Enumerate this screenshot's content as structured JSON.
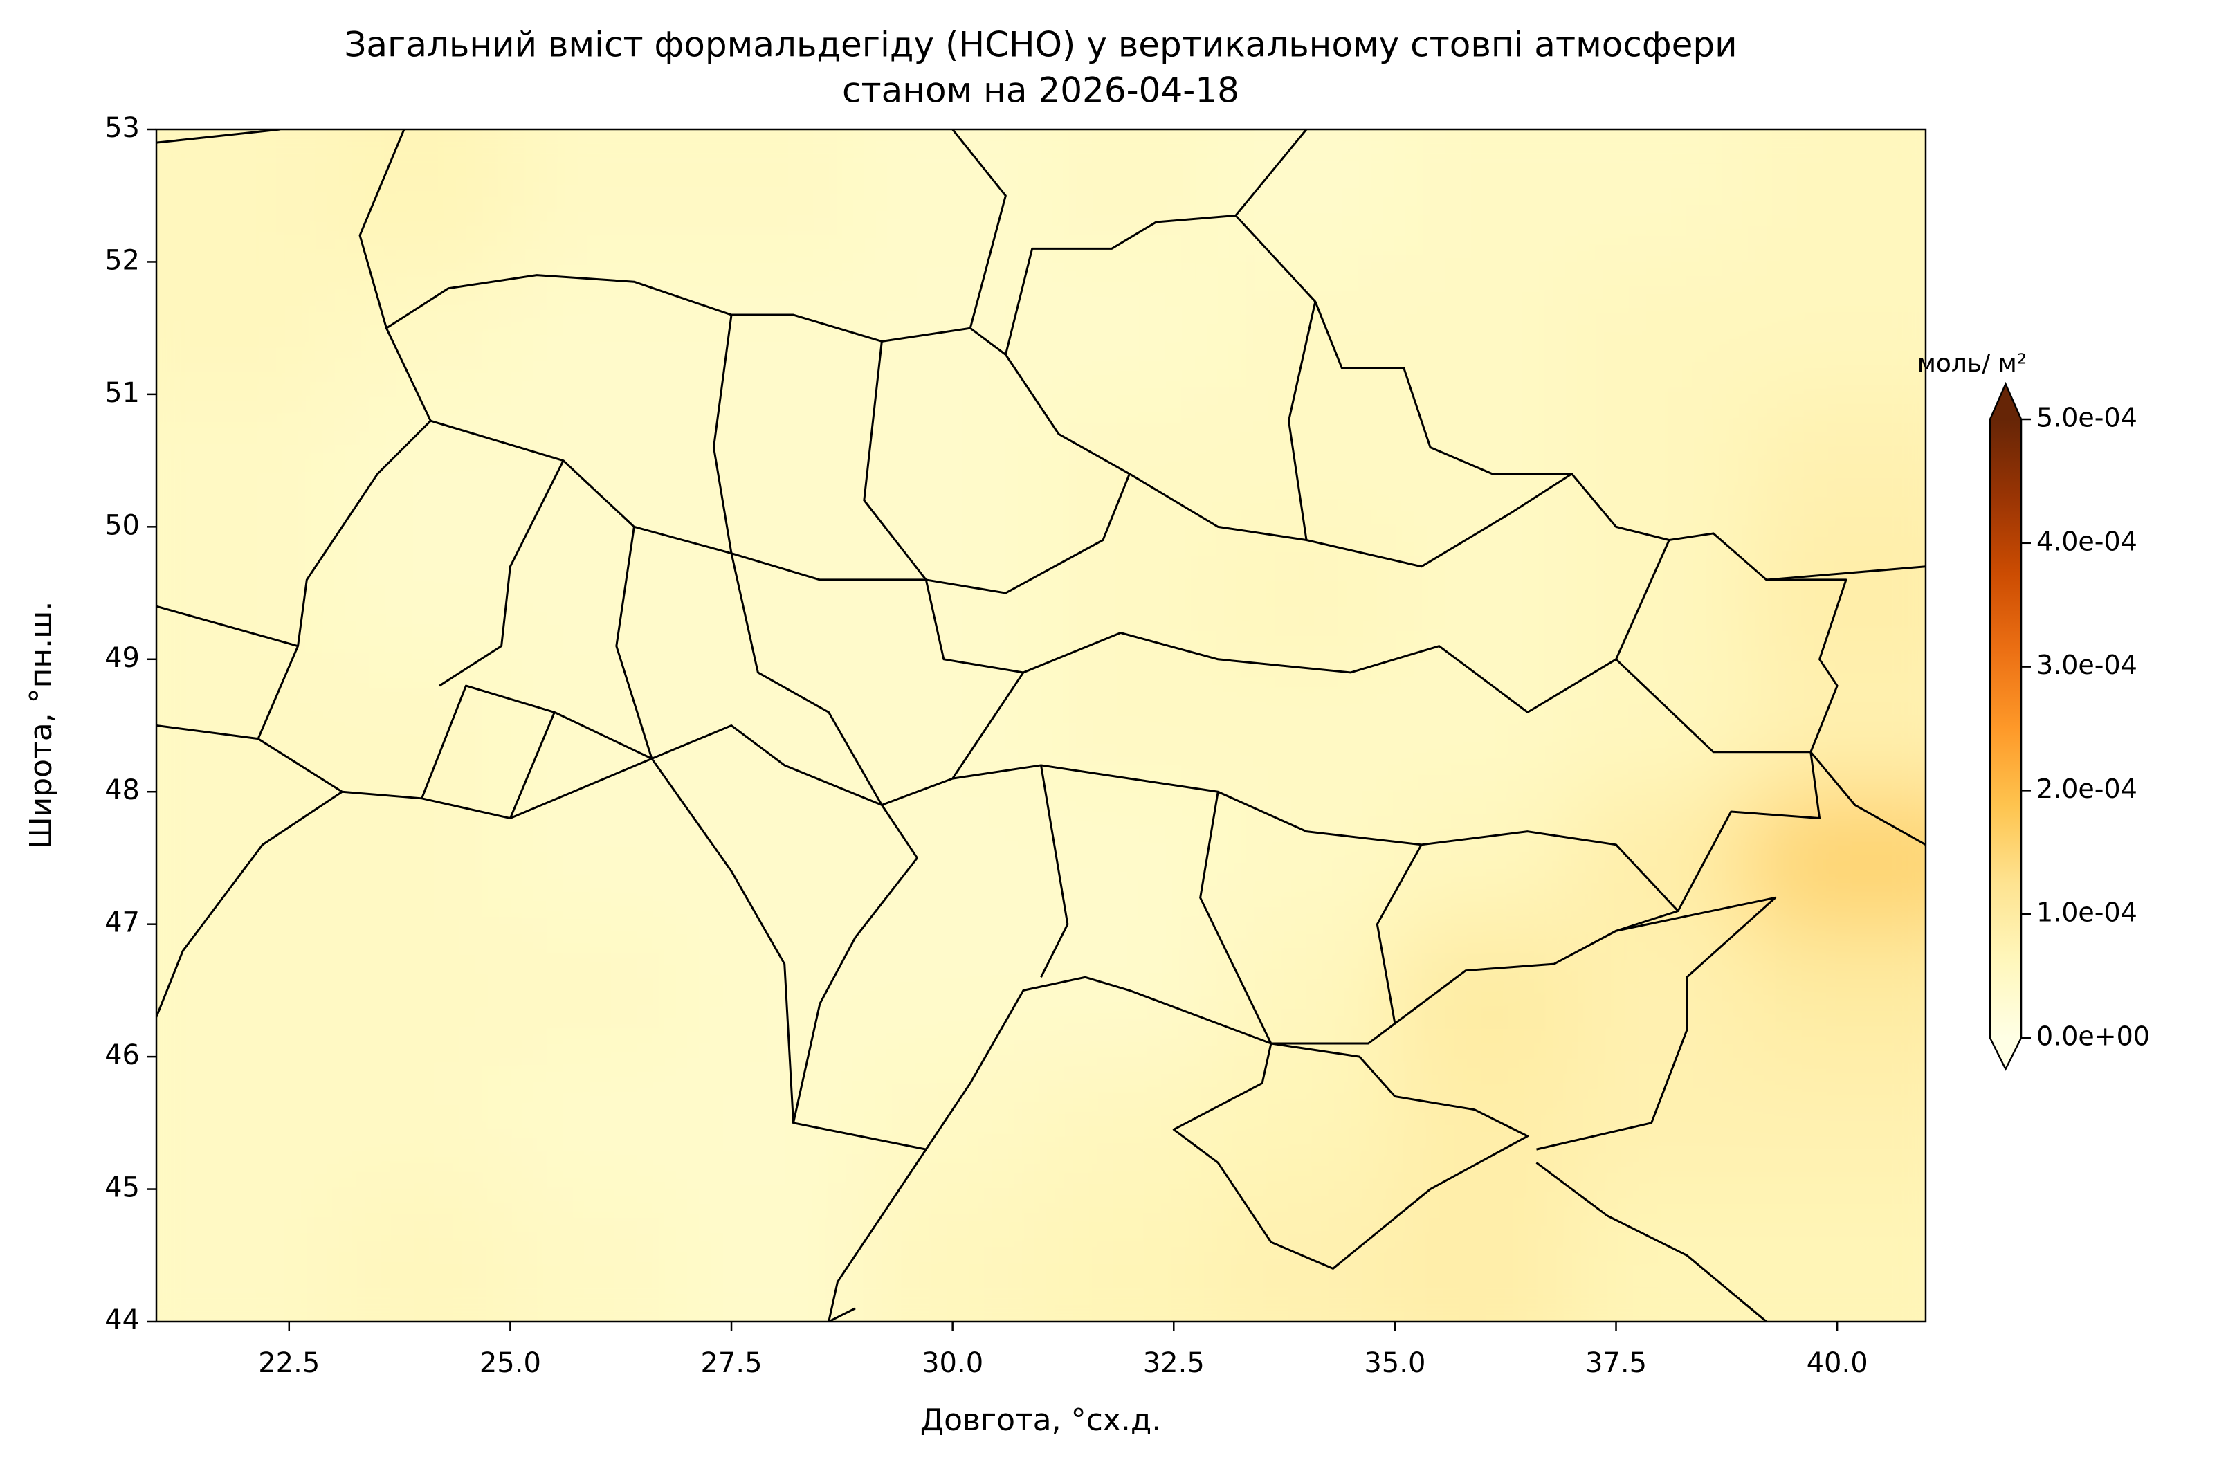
{
  "chart_data": {
    "type": "map",
    "title": [
      "Загальний вміст формальдегіду (HCHO) у вертикальному стовпі атмосфери",
      "станом на 2026-04-18"
    ],
    "xlabel": "Довгота, °сх.д.",
    "ylabel": "Широта, °пн.ш.",
    "xlim": [
      21,
      41
    ],
    "ylim": [
      44,
      53
    ],
    "xticks": [
      {
        "value": 22.5,
        "label": "22.5"
      },
      {
        "value": 25,
        "label": "25.0"
      },
      {
        "value": 27.5,
        "label": "27.5"
      },
      {
        "value": 30,
        "label": "30.0"
      },
      {
        "value": 32.5,
        "label": "32.5"
      },
      {
        "value": 35,
        "label": "35.0"
      },
      {
        "value": 37.5,
        "label": "37.5"
      },
      {
        "value": 40,
        "label": "40.0"
      }
    ],
    "yticks": [
      44,
      45,
      46,
      47,
      48,
      49,
      50,
      51,
      52,
      53
    ],
    "x": [
      22,
      24,
      26,
      28,
      30,
      32,
      34,
      36,
      38,
      40
    ],
    "y": [
      44.5,
      45.5,
      46.5,
      47.5,
      48.5,
      49.5,
      50.5,
      51.5,
      52.5
    ],
    "z": [
      [
        5e-05,
        6e-05,
        5e-05,
        4e-05,
        6e-05,
        7e-05,
        8e-05,
        9e-05,
        7e-05,
        7e-05
      ],
      [
        5e-05,
        5e-05,
        4e-05,
        4e-05,
        5e-05,
        6e-05,
        7e-05,
        9e-05,
        8e-05,
        8e-05
      ],
      [
        5e-05,
        5e-05,
        5e-05,
        4e-05,
        4e-05,
        4e-05,
        6e-05,
        0.0001,
        8e-05,
        0.0001
      ],
      [
        5e-05,
        5e-05,
        4e-05,
        4e-05,
        4e-05,
        4e-05,
        5e-05,
        6e-05,
        9e-05,
        0.00016
      ],
      [
        5e-05,
        5e-05,
        4e-05,
        4e-05,
        4e-05,
        5e-05,
        5e-05,
        5e-05,
        6e-05,
        8e-05
      ],
      [
        5e-05,
        4e-05,
        4e-05,
        4e-05,
        4e-05,
        5e-05,
        6e-05,
        5e-05,
        6e-05,
        9e-05
      ],
      [
        5e-05,
        4e-05,
        4e-05,
        4e-05,
        4e-05,
        5e-05,
        5e-05,
        5e-05,
        6e-05,
        8e-05
      ],
      [
        6e-05,
        5e-05,
        4e-05,
        4e-05,
        4e-05,
        4e-05,
        5e-05,
        5e-05,
        6e-05,
        6e-05
      ],
      [
        6e-05,
        7e-05,
        5e-05,
        5e-05,
        4e-05,
        5e-05,
        4e-05,
        5e-05,
        5e-05,
        6e-05
      ]
    ],
    "colorbar": {
      "label": "моль/ м²",
      "lim": [
        0,
        0.0005
      ],
      "ticks": [
        {
          "value": 0,
          "label": "0.0e+00"
        },
        {
          "value": 0.0001,
          "label": "1.0e-04"
        },
        {
          "value": 0.0002,
          "label": "2.0e-04"
        },
        {
          "value": 0.0003,
          "label": "3.0e-04"
        },
        {
          "value": 0.0004,
          "label": "4.0e-04"
        },
        {
          "value": 0.0005,
          "label": "5.0e-04"
        }
      ]
    },
    "colormap": [
      "#ffffe5",
      "#fff7bc",
      "#fee391",
      "#fec44f",
      "#fe9929",
      "#ec7014",
      "#cc4c02",
      "#993404",
      "#662506"
    ]
  }
}
